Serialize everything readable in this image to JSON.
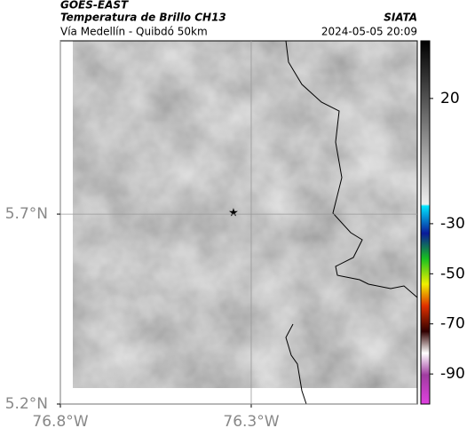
{
  "header": {
    "satellite": "GOES-EAST",
    "title": "Temperatura de Brillo CH13",
    "subtitle": "Vía Medellín - Quibdó 50km",
    "source": "SIATA",
    "datetime": "2024-05-05 20:09"
  },
  "map": {
    "xlim": [
      -76.8,
      -75.865
    ],
    "ylim": [
      5.2,
      6.156
    ],
    "xticks": [
      {
        "value": -76.8,
        "label": "76.8°W"
      },
      {
        "value": -76.3,
        "label": "76.3°W"
      }
    ],
    "yticks": [
      {
        "value": 5.2,
        "label": "5.2°N"
      },
      {
        "value": 5.7,
        "label": "5.7°N"
      }
    ],
    "grid": true
  },
  "colorbar": {
    "clim": [
      -102,
      43
    ],
    "ticks": [
      20,
      -30,
      -50,
      -70,
      -90
    ]
  }
}
